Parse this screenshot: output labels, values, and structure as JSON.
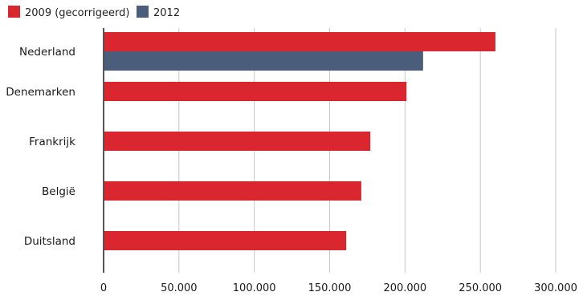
{
  "chart_data": {
    "type": "bar",
    "orientation": "horizontal",
    "title": "",
    "xlabel": "",
    "ylabel": "",
    "categories": [
      "Nederland",
      "Denemarken",
      "Frankrijk",
      "België",
      "Duitsland"
    ],
    "series": [
      {
        "name": "2009 (gecorrigeerd)",
        "color": "#d9262f",
        "values": [
          260000,
          201000,
          177000,
          171000,
          161000
        ]
      },
      {
        "name": "2012",
        "color": "#4a5d7a",
        "values": [
          212000,
          null,
          null,
          null,
          null
        ]
      }
    ],
    "xlim": [
      0,
      300000
    ],
    "xticks": [
      0,
      50000,
      100000,
      150000,
      200000,
      250000,
      300000
    ],
    "xtick_labels": [
      "0",
      "50.000",
      "100.000",
      "150.000",
      "200.000",
      "250.000",
      "300.000"
    ],
    "grid": "vertical",
    "legend_position": "top-left"
  }
}
